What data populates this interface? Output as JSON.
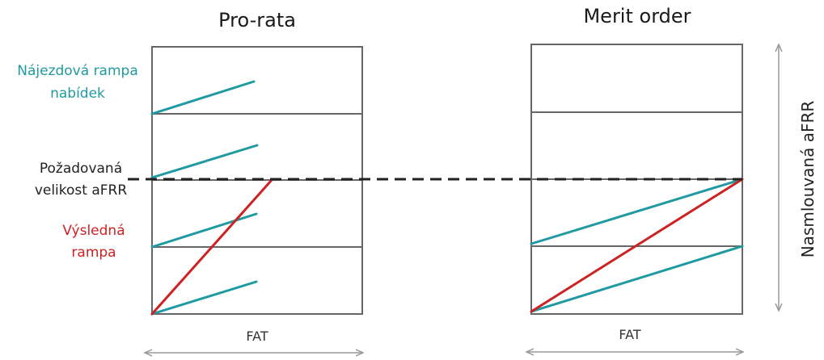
{
  "left_panel": {
    "title": "Pro-rata",
    "axis_label": "FAT"
  },
  "right_panel": {
    "title": "Merit order",
    "axis_label": "FAT"
  },
  "labels": {
    "ramp_line1": "Nájezdová rampa",
    "ramp_line2": "nabídek",
    "required_line1": "Požadovaná",
    "required_line2": "velikost aFRR",
    "result_line1": "Výsledná",
    "result_line2": "rampa",
    "contracted": "Nasmlouvaná aFRR"
  },
  "colors": {
    "bid_ramp": "#1e9aa0",
    "result_ramp": "#cc2222",
    "frame": "#666666",
    "dashed": "#222222",
    "arrow": "#999999",
    "required_text": "#222222"
  }
}
